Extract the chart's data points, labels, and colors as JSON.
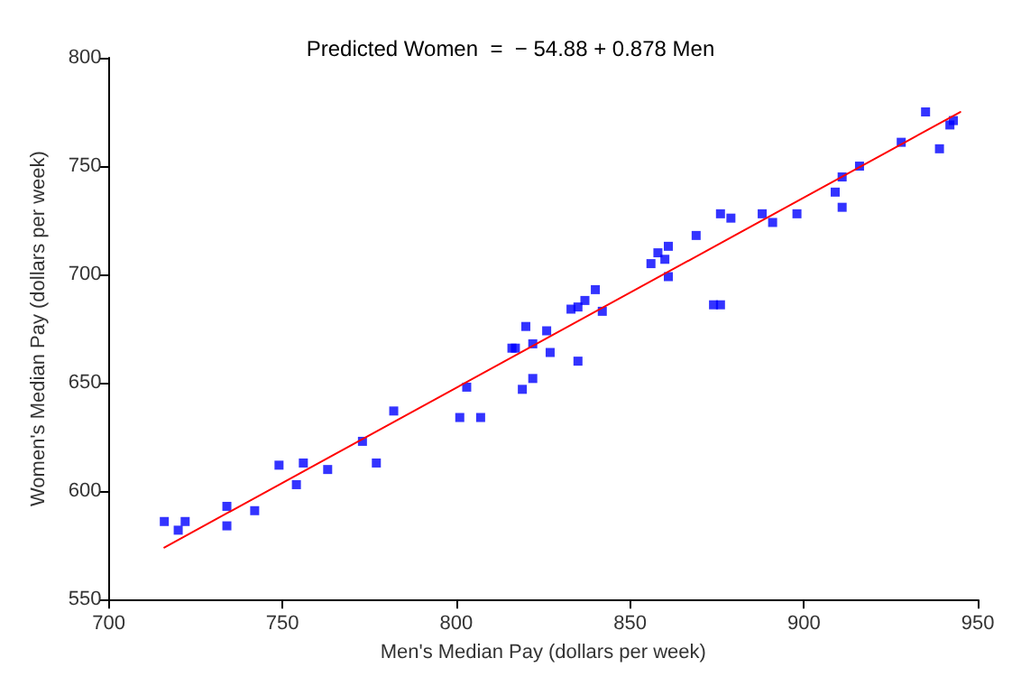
{
  "chart_data": {
    "type": "scatter",
    "title": "Predicted Women  =  − 54.88 + 0.878 Men",
    "xlabel": "Men's Median Pay (dollars per week)",
    "ylabel": "Women's Median Pay (dollars per week)",
    "xlim": [
      700,
      950
    ],
    "xticks": [
      700,
      750,
      800,
      850,
      900,
      950
    ],
    "ylim": [
      550,
      800
    ],
    "yticks": [
      550,
      600,
      650,
      700,
      750,
      800
    ],
    "grid": false,
    "marker": "square",
    "series": [
      {
        "color": "#0000ff",
        "x": [
          716,
          720,
          722,
          734,
          734,
          742,
          749,
          754,
          756,
          763,
          773,
          777,
          782,
          801,
          803,
          807,
          816,
          817,
          819,
          820,
          822,
          822,
          826,
          827,
          835,
          833,
          835,
          837,
          840,
          842,
          856,
          858,
          860,
          861,
          861,
          869,
          874,
          876,
          876,
          879,
          888,
          891,
          898,
          909,
          911,
          911,
          916,
          928,
          935,
          939,
          942,
          943
        ],
        "values": [
          586,
          582,
          586,
          593,
          584,
          591,
          612,
          603,
          613,
          610,
          623,
          613,
          637,
          634,
          648,
          634,
          666,
          666,
          647,
          676,
          652,
          668,
          674,
          664,
          660,
          684,
          685,
          688,
          693,
          683,
          705,
          710,
          707,
          713,
          699,
          718,
          686,
          686,
          728,
          726,
          728,
          724,
          728,
          738,
          745,
          731,
          750,
          761,
          775,
          758,
          769,
          771
        ]
      },
      {
        "type": "line",
        "color": "#ff0000",
        "line_style": "solid",
        "marker": "none",
        "x": [
          716,
          945
        ],
        "values": [
          574,
          775
        ]
      }
    ]
  }
}
